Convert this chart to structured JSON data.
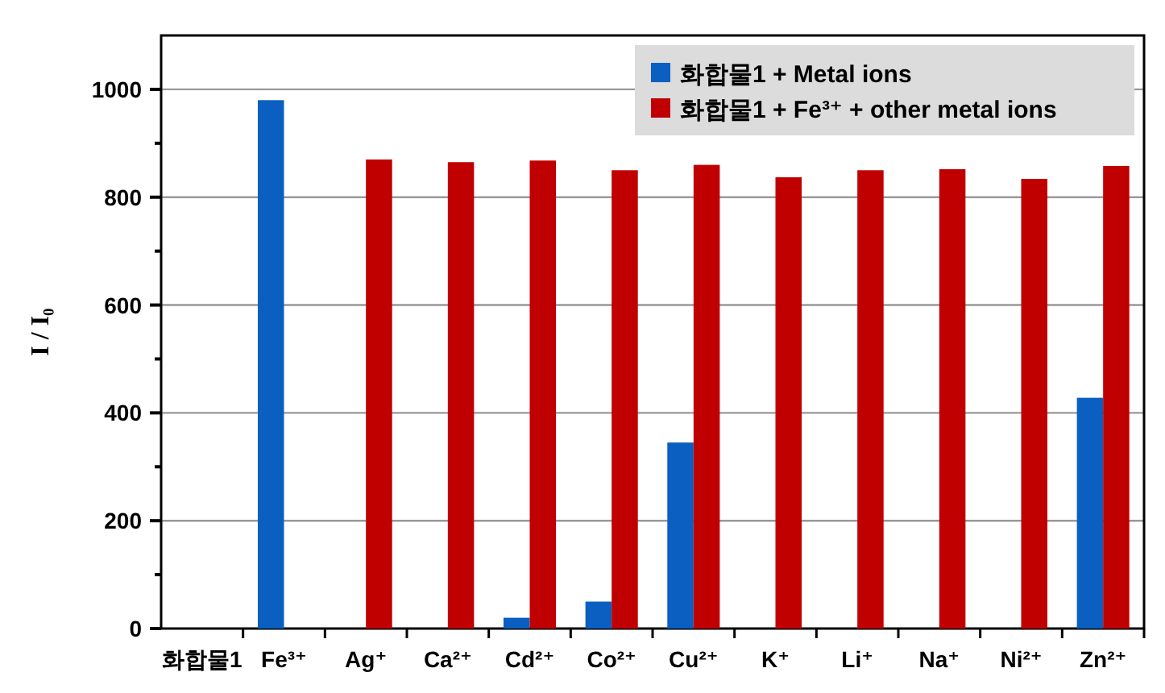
{
  "chart_data": {
    "type": "bar",
    "ylabel": "I / I₀",
    "categories": [
      "화합물1",
      "Fe³⁺",
      "Ag⁺",
      "Ca²⁺",
      "Cd²⁺",
      "Co²⁺",
      "Cu²⁺",
      "K⁺",
      "Li⁺",
      "Na⁺",
      "Ni²⁺",
      "Zn²⁺"
    ],
    "series": [
      {
        "name": "화합물1 + Metal ions",
        "color": "#0a5fc0",
        "values": [
          0,
          980,
          0,
          0,
          20,
          50,
          345,
          0,
          0,
          0,
          0,
          428
        ]
      },
      {
        "name": "화합물1 + Fe³⁺ + other metal ions",
        "color": "#c00000",
        "values": [
          null,
          null,
          870,
          865,
          868,
          850,
          860,
          837,
          850,
          852,
          834,
          858
        ]
      }
    ],
    "ylim": [
      0,
      1100
    ],
    "yticks": [
      0,
      {
        "value": 100,
        "label": null
      },
      200,
      {
        "value": 300,
        "label": null
      },
      400,
      {
        "value": 500,
        "label": null
      },
      600,
      {
        "value": 700,
        "label": null
      },
      800,
      {
        "value": 900,
        "label": null
      },
      1000
    ],
    "grid": "y",
    "legend": "top right"
  }
}
